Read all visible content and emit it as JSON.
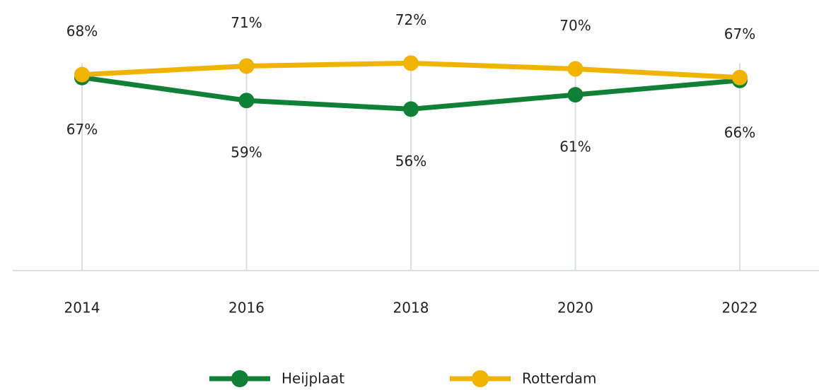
{
  "chart_data": {
    "type": "line",
    "categories": [
      "2014",
      "2016",
      "2018",
      "2020",
      "2022"
    ],
    "series": [
      {
        "name": "Heijplaat",
        "color": "#118037",
        "values": [
          67,
          59,
          56,
          61,
          66
        ],
        "value_labels": [
          "67%",
          "59%",
          "56%",
          "61%",
          "66%"
        ]
      },
      {
        "name": "Rotterdam",
        "color": "#f0b400",
        "values": [
          68,
          71,
          72,
          70,
          67
        ],
        "value_labels": [
          "68%",
          "71%",
          "72%",
          "70%",
          "67%"
        ]
      }
    ],
    "ylim": [
      0,
      94
    ],
    "legend": "bottom"
  }
}
